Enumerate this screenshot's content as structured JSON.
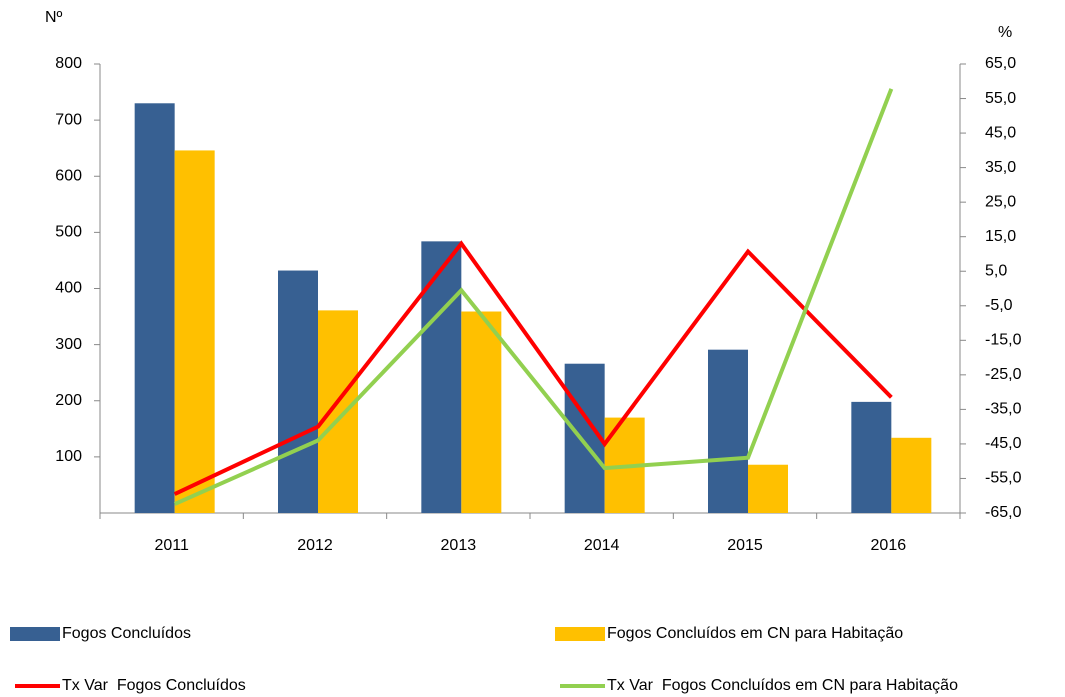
{
  "chart_data": {
    "type": "bar_line",
    "y_label": "Nº",
    "y2_label": "%",
    "categories": [
      "2011",
      "2012",
      "2013",
      "2014",
      "2015",
      "2016"
    ],
    "ylim": [
      0,
      800
    ],
    "yticks": [
      100,
      200,
      300,
      400,
      500,
      600,
      700,
      800
    ],
    "y2lim": [
      -65,
      65
    ],
    "y2ticks": [
      {
        "value": 65,
        "label": "65,0"
      },
      {
        "value": 55,
        "label": "55,0"
      },
      {
        "value": 45,
        "label": "45,0"
      },
      {
        "value": 35,
        "label": "35,0"
      },
      {
        "value": 25,
        "label": "25,0"
      },
      {
        "value": 15,
        "label": "15,0"
      },
      {
        "value": 5,
        "label": "5,0"
      },
      {
        "value": -5,
        "label": "-5,0"
      },
      {
        "value": -15,
        "label": "-15,0"
      },
      {
        "value": -25,
        "label": "-25,0"
      },
      {
        "value": -35,
        "label": "-35,0"
      },
      {
        "value": -45,
        "label": "-45,0"
      },
      {
        "value": -55,
        "label": "-55,0"
      },
      {
        "value": -65,
        "label": "-65,0"
      }
    ],
    "series": [
      {
        "name": "Fogos Concluídos",
        "type": "bar",
        "color": "#376092",
        "values": [
          730,
          432,
          484,
          266,
          291,
          198
        ]
      },
      {
        "name": "Fogos Concluídos em CN para Habitação",
        "type": "bar",
        "color": "#ffc000",
        "values": [
          646,
          361,
          359,
          170,
          86,
          134
        ]
      },
      {
        "name": "Tx Var  Fogos Concluídos",
        "type": "line",
        "axis": "y2",
        "color": "#ff0000",
        "values": [
          -59.5,
          -40,
          13,
          -45,
          10.7,
          -31.5
        ]
      },
      {
        "name": "Tx Var  Fogos Concluídos em CN para Habitação",
        "type": "line",
        "axis": "y2",
        "color": "#92d050",
        "values": [
          -62.4,
          -44,
          -0.5,
          -52,
          -49,
          57.8
        ]
      }
    ]
  }
}
